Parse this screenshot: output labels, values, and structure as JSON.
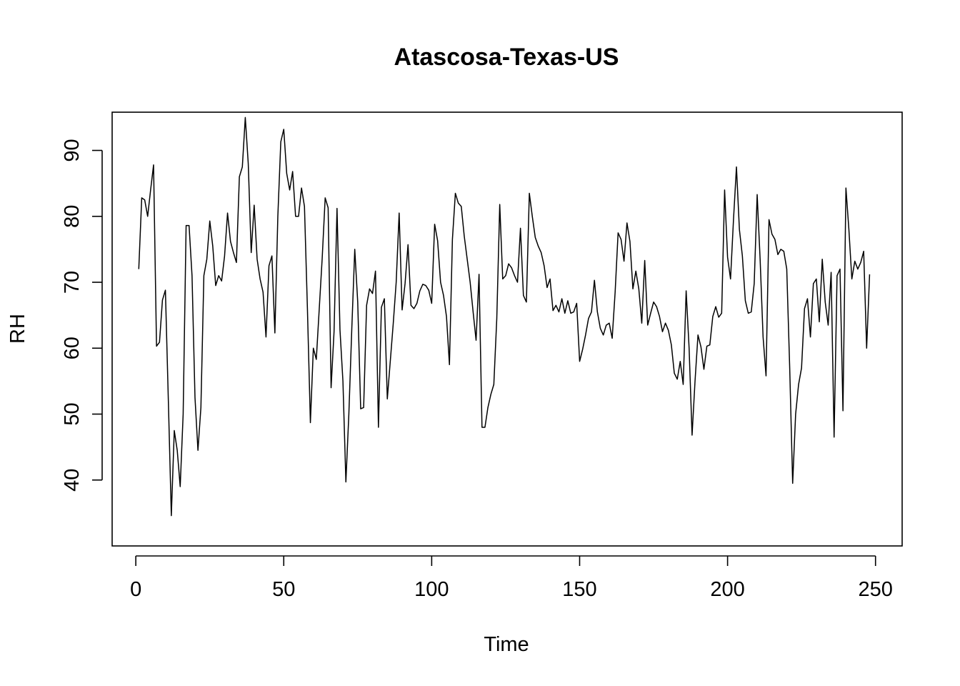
{
  "chart_data": {
    "type": "line",
    "title": "Atascosa-Texas-US",
    "xlabel": "Time",
    "ylabel": "RH",
    "xlim": [
      -8,
      259
    ],
    "ylim": [
      30,
      95.8
    ],
    "x_ticks": [
      0,
      50,
      100,
      150,
      200,
      250
    ],
    "y_ticks": [
      40,
      50,
      60,
      70,
      80,
      90
    ],
    "x_tick_labels": [
      "0",
      "50",
      "100",
      "150",
      "200",
      "250"
    ],
    "y_tick_labels": [
      "40",
      "50",
      "60",
      "70",
      "80",
      "90"
    ],
    "grid": false,
    "legend": "none",
    "color": "#000000",
    "series": [
      {
        "x": [
          1,
          2,
          3,
          4,
          5,
          6,
          7,
          8,
          9,
          10,
          11,
          12,
          13,
          14,
          15,
          16,
          17,
          18,
          19,
          20,
          21,
          22,
          23,
          24,
          25,
          26,
          27,
          28,
          29,
          30,
          31,
          32,
          33,
          34,
          35,
          36,
          37,
          38,
          39,
          40,
          41,
          42,
          43,
          44,
          45,
          46,
          47,
          48,
          49,
          50,
          51,
          52,
          53,
          54,
          55,
          56,
          57,
          58,
          59,
          60,
          61,
          62,
          63,
          64,
          65,
          66,
          67,
          68,
          69,
          70,
          71,
          72,
          73,
          74,
          75,
          76,
          77,
          78,
          79,
          80,
          81,
          82,
          83,
          84,
          85,
          86,
          87,
          88,
          89,
          90,
          91,
          92,
          93,
          94,
          95,
          96,
          97,
          98,
          99,
          100,
          101,
          102,
          103,
          104,
          105,
          106,
          107,
          108,
          109,
          110,
          111,
          112,
          113,
          114,
          115,
          116,
          117,
          118,
          119,
          120,
          121,
          122,
          123,
          124,
          125,
          126,
          127,
          128,
          129,
          130,
          131,
          132,
          133,
          134,
          135,
          136,
          137,
          138,
          139,
          140,
          141,
          142,
          143,
          144,
          145,
          146,
          147,
          148,
          149,
          150,
          151,
          152,
          153,
          154,
          155,
          156,
          157,
          158,
          159,
          160,
          161,
          162,
          163,
          164,
          165,
          166,
          167,
          168,
          169,
          170,
          171,
          172,
          173,
          174,
          175,
          176,
          177,
          178,
          179,
          180,
          181,
          182,
          183,
          184,
          185,
          186,
          187,
          188,
          189,
          190,
          191,
          192,
          193,
          194,
          195,
          196,
          197,
          198,
          199,
          200,
          201,
          202,
          203,
          204,
          205,
          206,
          207,
          208,
          209,
          210,
          211,
          212,
          213,
          214,
          215,
          216,
          217,
          218,
          219,
          220,
          221,
          222,
          223,
          224,
          225,
          226,
          227,
          228,
          229,
          230,
          231,
          232,
          233,
          234,
          235,
          236,
          237,
          238,
          239,
          240,
          241,
          242,
          243,
          244,
          245,
          246,
          247,
          248
        ],
        "values": [
          72.0,
          82.8,
          82.5,
          80.0,
          84.0,
          87.8,
          60.3,
          60.9,
          67.3,
          68.8,
          52.0,
          34.6,
          47.5,
          44.5,
          39.0,
          50.0,
          78.6,
          78.6,
          71.0,
          52.5,
          44.5,
          51.0,
          71.0,
          73.5,
          79.3,
          75.5,
          69.5,
          71.0,
          70.2,
          74.0,
          80.5,
          76.2,
          74.5,
          73.0,
          86.0,
          87.5,
          95.0,
          88.0,
          74.5,
          81.7,
          73.5,
          70.5,
          68.5,
          61.7,
          72.5,
          74.0,
          62.3,
          80.0,
          91.3,
          93.2,
          86.5,
          84.0,
          86.8,
          80.0,
          80.0,
          84.3,
          81.5,
          66.0,
          48.7,
          60.0,
          58.3,
          66.0,
          73.7,
          82.8,
          81.3,
          54.0,
          62.5,
          81.2,
          62.8,
          55.0,
          39.7,
          50.0,
          63.0,
          75.0,
          67.0,
          50.8,
          51.0,
          66.5,
          69.0,
          68.3,
          71.7,
          48.0,
          66.2,
          67.5,
          52.3,
          58.0,
          63.7,
          70.0,
          80.5,
          65.8,
          69.8,
          75.7,
          66.5,
          66.0,
          66.8,
          68.7,
          69.7,
          69.5,
          68.8,
          66.8,
          78.8,
          76.3,
          70.0,
          68.0,
          64.8,
          57.5,
          76.5,
          83.5,
          82.0,
          81.5,
          77.0,
          73.5,
          70.0,
          65.5,
          61.2,
          71.2,
          48.0,
          48.0,
          51.0,
          53.0,
          54.5,
          64.5,
          81.8,
          70.5,
          71.0,
          72.8,
          72.2,
          71.0,
          70.0,
          78.2,
          68.0,
          67.0,
          83.5,
          80.0,
          76.8,
          75.5,
          74.5,
          72.5,
          69.2,
          70.5,
          65.7,
          66.5,
          65.5,
          67.5,
          65.3,
          67.2,
          65.3,
          65.5,
          66.8,
          58.0,
          59.8,
          62.0,
          64.5,
          65.5,
          70.3,
          65.5,
          63.0,
          62.0,
          63.5,
          63.8,
          61.5,
          68.5,
          77.5,
          76.5,
          73.2,
          79.0,
          76.2,
          69.0,
          71.7,
          69.0,
          63.8,
          73.3,
          63.5,
          65.3,
          67.0,
          66.3,
          64.8,
          62.5,
          63.8,
          62.7,
          60.5,
          56.2,
          55.3,
          58.0,
          54.5,
          68.7,
          60.0,
          46.8,
          55.0,
          62.0,
          60.2,
          56.8,
          60.3,
          60.5,
          64.8,
          66.3,
          64.7,
          65.3,
          84.0,
          73.8,
          70.5,
          79.5,
          87.5,
          78.0,
          74.0,
          67.2,
          65.3,
          65.5,
          69.8,
          83.3,
          73.5,
          61.7,
          55.8,
          79.5,
          77.3,
          76.5,
          74.2,
          75.0,
          74.7,
          72.0,
          57.0,
          39.5,
          50.0,
          54.5,
          57.0,
          66.0,
          67.5,
          61.7,
          69.8,
          70.5,
          64.0,
          73.5,
          67.0,
          63.5,
          71.5,
          46.5,
          71.0,
          72.0,
          50.5,
          84.3,
          78.0,
          70.5,
          73.2,
          72.0,
          73.0,
          74.7,
          60.0,
          71.2
        ]
      }
    ]
  }
}
